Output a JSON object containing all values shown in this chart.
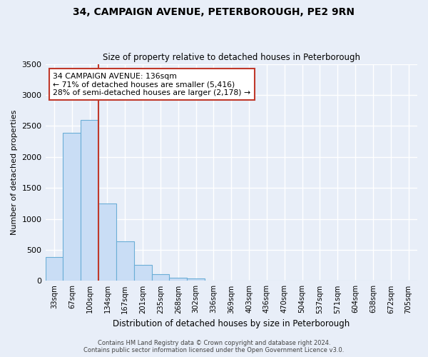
{
  "title": "34, CAMPAIGN AVENUE, PETERBOROUGH, PE2 9RN",
  "subtitle": "Size of property relative to detached houses in Peterborough",
  "xlabel": "Distribution of detached houses by size in Peterborough",
  "ylabel": "Number of detached properties",
  "categories": [
    "33sqm",
    "67sqm",
    "100sqm",
    "134sqm",
    "167sqm",
    "201sqm",
    "235sqm",
    "268sqm",
    "302sqm",
    "336sqm",
    "369sqm",
    "403sqm",
    "436sqm",
    "470sqm",
    "504sqm",
    "537sqm",
    "571sqm",
    "604sqm",
    "638sqm",
    "672sqm",
    "705sqm"
  ],
  "values": [
    390,
    2390,
    2600,
    1250,
    640,
    260,
    110,
    55,
    45,
    0,
    0,
    0,
    0,
    0,
    0,
    0,
    0,
    0,
    0,
    0,
    0
  ],
  "bar_color": "#c9ddf5",
  "bar_edge_color": "#6baed6",
  "vline_color": "#c0392b",
  "annotation_title": "34 CAMPAIGN AVENUE: 136sqm",
  "annotation_line1": "← 71% of detached houses are smaller (5,416)",
  "annotation_line2": "28% of semi-detached houses are larger (2,178) →",
  "annotation_box_color": "#ffffff",
  "annotation_box_edge": "#c0392b",
  "ylim": [
    0,
    3500
  ],
  "yticks": [
    0,
    500,
    1000,
    1500,
    2000,
    2500,
    3000,
    3500
  ],
  "background_color": "#e8eef8",
  "grid_color": "#ffffff",
  "footnote1": "Contains HM Land Registry data © Crown copyright and database right 2024.",
  "footnote2": "Contains public sector information licensed under the Open Government Licence v3.0."
}
